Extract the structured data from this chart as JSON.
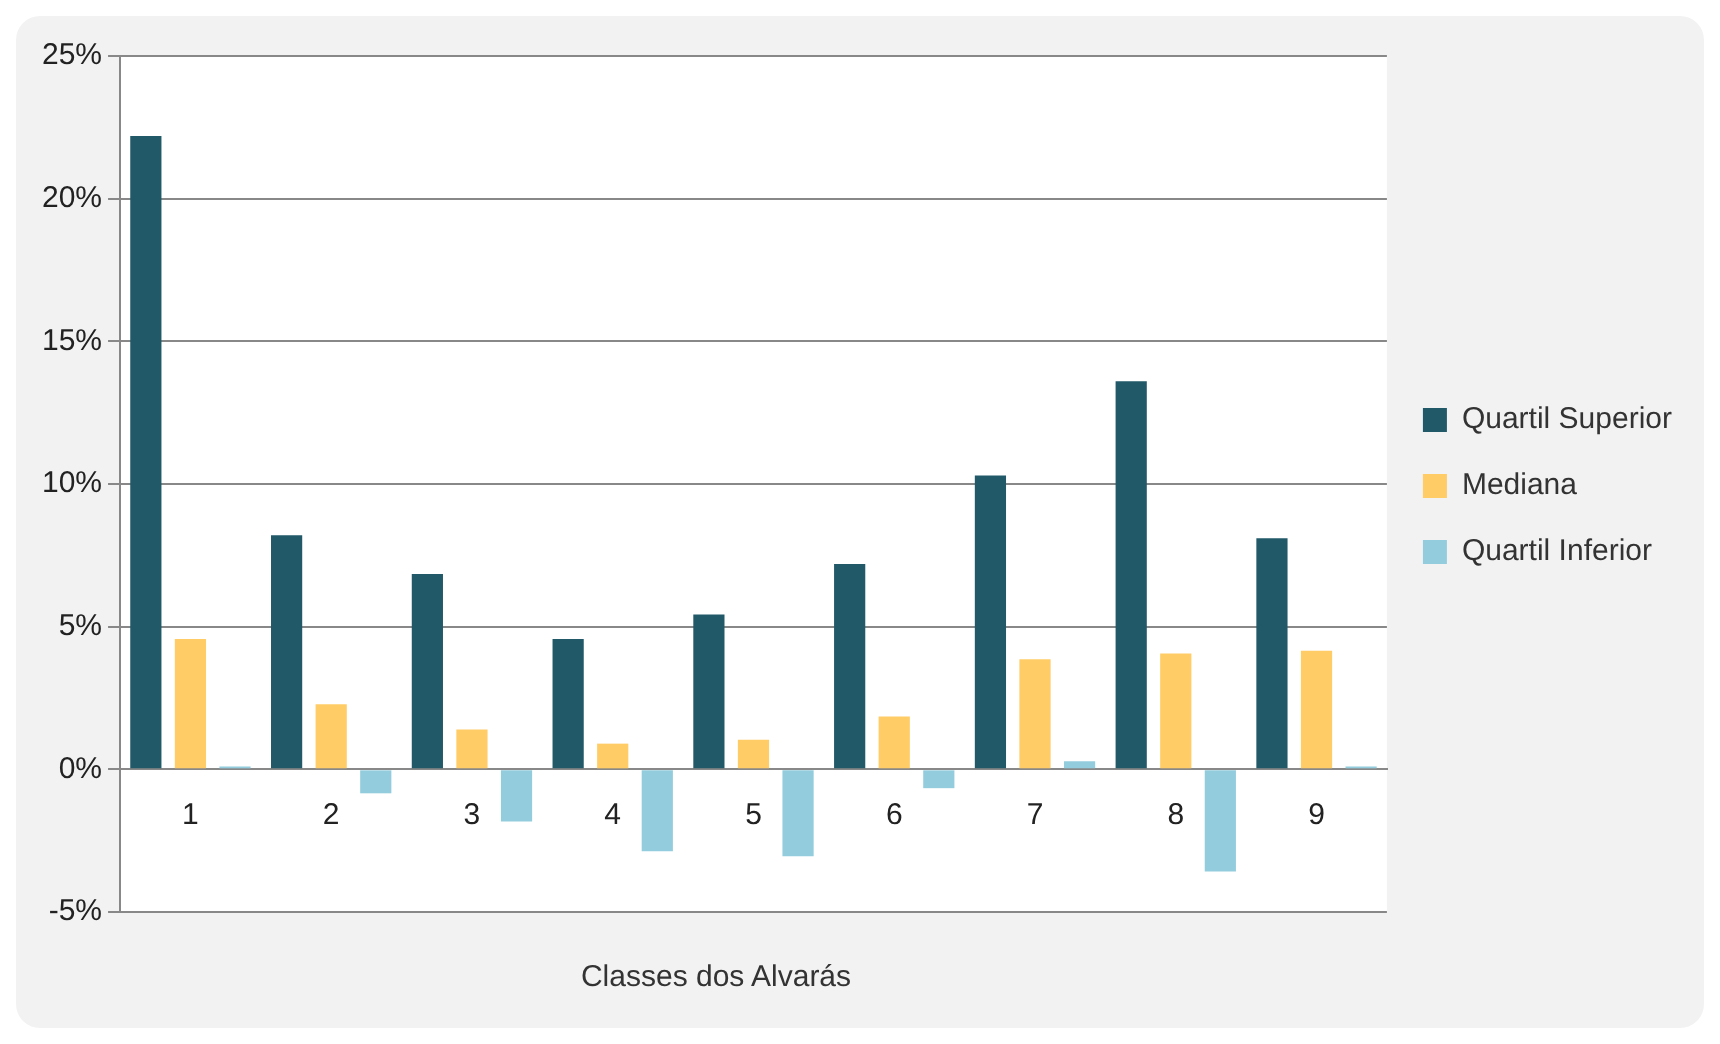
{
  "chart_data": {
    "type": "bar",
    "xlabel": "Classes dos Alvarás",
    "categories": [
      "1",
      "2",
      "3",
      "4",
      "5",
      "6",
      "7",
      "8",
      "9"
    ],
    "series": [
      {
        "name": "Quartil Superior",
        "color": "#215968",
        "values": [
          22.2,
          8.2,
          6.85,
          4.57,
          5.43,
          7.2,
          10.3,
          13.6,
          8.1
        ]
      },
      {
        "name": "Mediana",
        "color": "#ffcc66",
        "values": [
          4.57,
          2.28,
          1.4,
          0.9,
          1.04,
          1.85,
          3.86,
          4.06,
          4.16
        ]
      },
      {
        "name": "Quartil Inferior",
        "color": "#93cddd",
        "values": [
          0.1,
          -0.84,
          -1.83,
          -2.87,
          -3.05,
          -0.66,
          0.28,
          -3.58,
          0.1
        ]
      }
    ],
    "ylim": [
      -5,
      25
    ],
    "yticks": [
      {
        "value": -5,
        "label": "-5%"
      },
      {
        "value": 0,
        "label": "0%"
      },
      {
        "value": 5,
        "label": "5%"
      },
      {
        "value": 10,
        "label": "10%"
      },
      {
        "value": 15,
        "label": "15%"
      },
      {
        "value": 20,
        "label": "20%"
      },
      {
        "value": 25,
        "label": "25%"
      }
    ],
    "grid": "y",
    "legend": "right"
  }
}
